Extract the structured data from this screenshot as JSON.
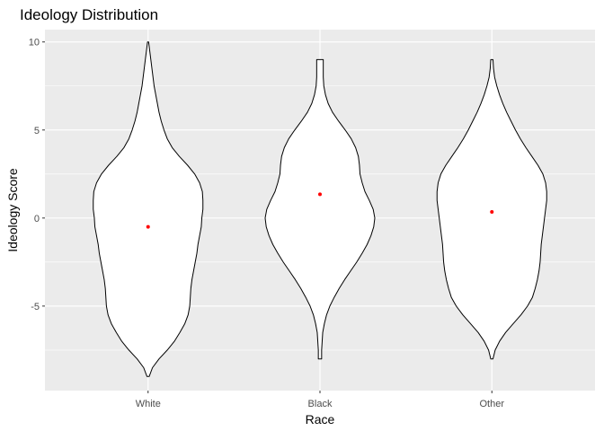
{
  "chart_data": {
    "type": "violin",
    "title": "Ideology Distribution",
    "xlabel": "Race",
    "ylabel": "Ideology Score",
    "categories": [
      "White",
      "Black",
      "Other"
    ],
    "y_ticks": [
      -5,
      0,
      5,
      10
    ],
    "ylim": [
      -9.8,
      10.7
    ],
    "grid": true,
    "panel_color": "#ebebeb",
    "grid_color": "#ffffff",
    "violin_fill": "#ffffff",
    "violin_stroke": "#000000",
    "mean_color": "#ff0000",
    "means": [
      -0.5,
      1.35,
      0.35
    ],
    "violins": [
      {
        "name": "White",
        "range": [
          -9,
          10
        ],
        "profile": [
          [
            -9,
            0.02
          ],
          [
            -8.5,
            0.08
          ],
          [
            -8,
            0.2
          ],
          [
            -7.5,
            0.35
          ],
          [
            -7,
            0.48
          ],
          [
            -6.5,
            0.58
          ],
          [
            -6,
            0.67
          ],
          [
            -5.5,
            0.73
          ],
          [
            -5,
            0.76
          ],
          [
            -4.5,
            0.77
          ],
          [
            -4,
            0.78
          ],
          [
            -3.5,
            0.8
          ],
          [
            -3,
            0.83
          ],
          [
            -2.5,
            0.86
          ],
          [
            -2,
            0.89
          ],
          [
            -1.5,
            0.91
          ],
          [
            -1,
            0.94
          ],
          [
            -0.5,
            0.97
          ],
          [
            0,
            0.98
          ],
          [
            0.5,
            1.0
          ],
          [
            1,
            1.0
          ],
          [
            1.5,
            0.99
          ],
          [
            2,
            0.94
          ],
          [
            2.5,
            0.85
          ],
          [
            3,
            0.72
          ],
          [
            3.5,
            0.57
          ],
          [
            4,
            0.44
          ],
          [
            4.5,
            0.35
          ],
          [
            5,
            0.29
          ],
          [
            5.5,
            0.24
          ],
          [
            6,
            0.2
          ],
          [
            6.5,
            0.17
          ],
          [
            7,
            0.14
          ],
          [
            7.5,
            0.11
          ],
          [
            8,
            0.09
          ],
          [
            8.5,
            0.07
          ],
          [
            9,
            0.05
          ],
          [
            9.5,
            0.03
          ],
          [
            10,
            0.01
          ]
        ]
      },
      {
        "name": "Black",
        "range": [
          -8,
          9
        ],
        "profile": [
          [
            -8,
            0.03
          ],
          [
            -7.5,
            0.03
          ],
          [
            -7,
            0.04
          ],
          [
            -6.5,
            0.05
          ],
          [
            -6,
            0.08
          ],
          [
            -5.5,
            0.12
          ],
          [
            -5,
            0.18
          ],
          [
            -4.5,
            0.26
          ],
          [
            -4,
            0.35
          ],
          [
            -3.5,
            0.45
          ],
          [
            -3,
            0.56
          ],
          [
            -2.5,
            0.67
          ],
          [
            -2,
            0.77
          ],
          [
            -1.5,
            0.86
          ],
          [
            -1,
            0.93
          ],
          [
            -0.5,
            0.98
          ],
          [
            0,
            1.0
          ],
          [
            0.5,
            0.97
          ],
          [
            1,
            0.9
          ],
          [
            1.5,
            0.82
          ],
          [
            2,
            0.77
          ],
          [
            2.5,
            0.73
          ],
          [
            3,
            0.72
          ],
          [
            3.5,
            0.7
          ],
          [
            4,
            0.65
          ],
          [
            4.5,
            0.57
          ],
          [
            5,
            0.46
          ],
          [
            5.5,
            0.34
          ],
          [
            6,
            0.23
          ],
          [
            6.5,
            0.15
          ],
          [
            7,
            0.1
          ],
          [
            7.5,
            0.07
          ],
          [
            8,
            0.06
          ],
          [
            8.5,
            0.06
          ],
          [
            9,
            0.06
          ]
        ]
      },
      {
        "name": "Other",
        "range": [
          -8,
          9
        ],
        "profile": [
          [
            -8,
            0.02
          ],
          [
            -7.5,
            0.06
          ],
          [
            -7,
            0.14
          ],
          [
            -6.5,
            0.25
          ],
          [
            -6,
            0.39
          ],
          [
            -5.5,
            0.53
          ],
          [
            -5,
            0.65
          ],
          [
            -4.5,
            0.74
          ],
          [
            -4,
            0.79
          ],
          [
            -3.5,
            0.83
          ],
          [
            -3,
            0.86
          ],
          [
            -2.5,
            0.88
          ],
          [
            -2,
            0.89
          ],
          [
            -1.5,
            0.9
          ],
          [
            -1,
            0.92
          ],
          [
            -0.5,
            0.94
          ],
          [
            0,
            0.96
          ],
          [
            0.5,
            0.98
          ],
          [
            1,
            1.0
          ],
          [
            1.5,
            1.0
          ],
          [
            2,
            0.98
          ],
          [
            2.5,
            0.93
          ],
          [
            3,
            0.84
          ],
          [
            3.5,
            0.73
          ],
          [
            4,
            0.62
          ],
          [
            4.5,
            0.52
          ],
          [
            5,
            0.43
          ],
          [
            5.5,
            0.35
          ],
          [
            6,
            0.27
          ],
          [
            6.5,
            0.2
          ],
          [
            7,
            0.14
          ],
          [
            7.5,
            0.09
          ],
          [
            8,
            0.05
          ],
          [
            8.5,
            0.03
          ],
          [
            9,
            0.02
          ]
        ]
      }
    ]
  }
}
